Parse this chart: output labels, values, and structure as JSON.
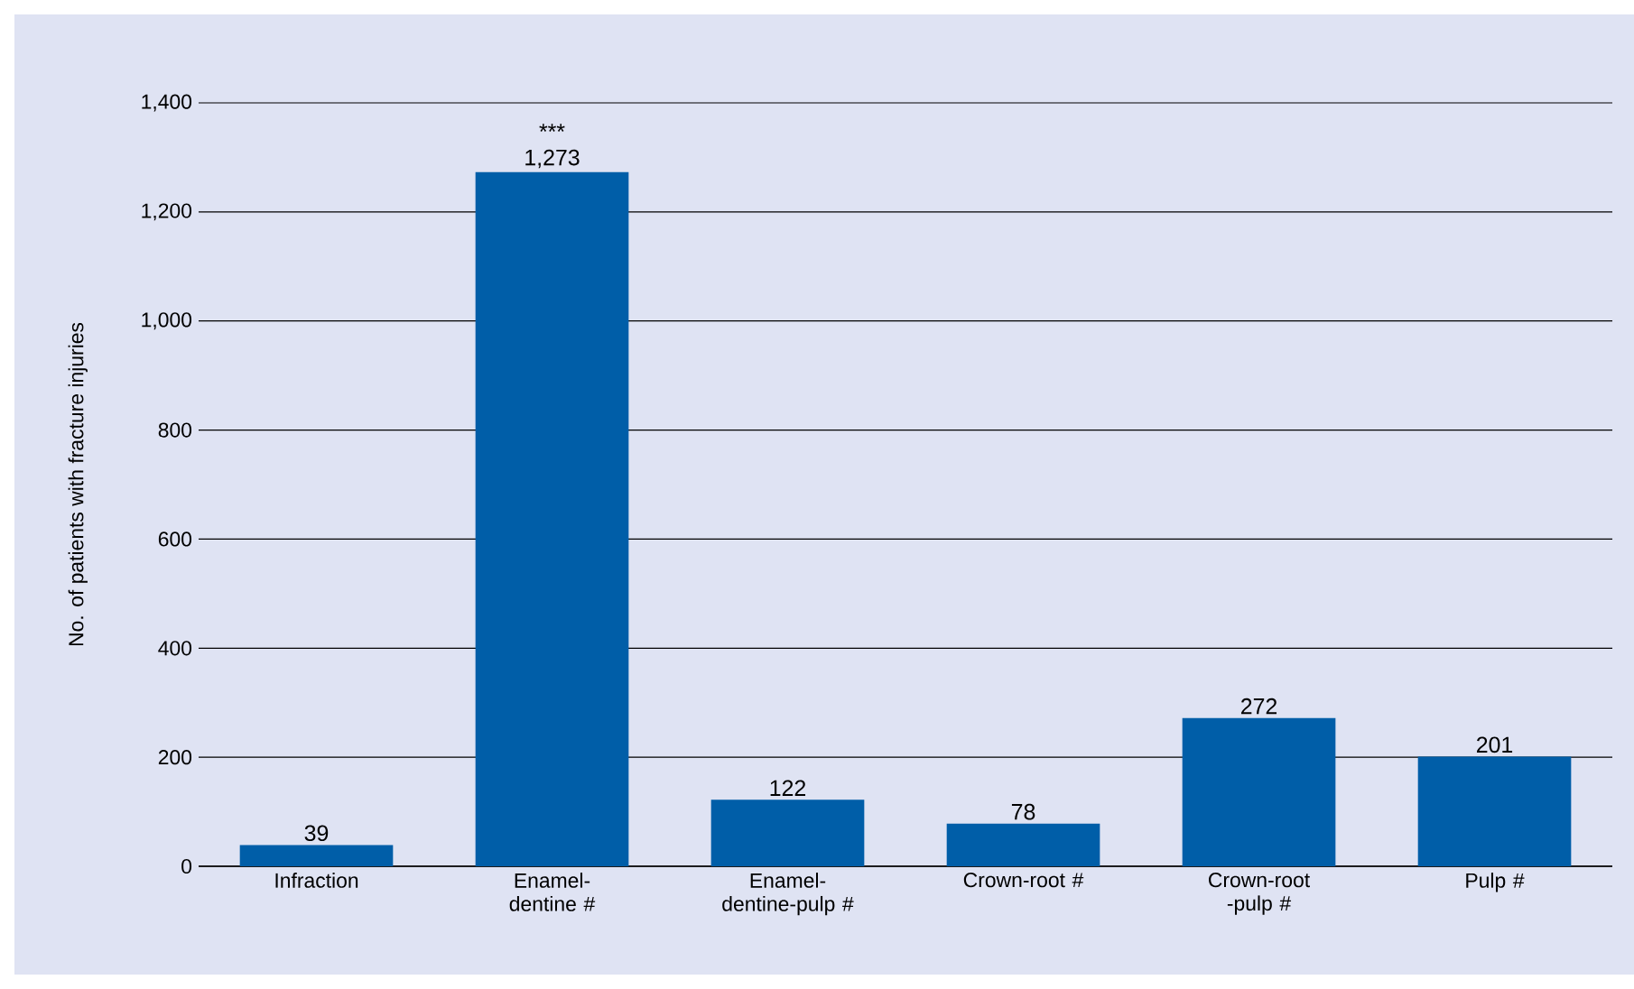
{
  "chart_data": {
    "type": "bar",
    "ylabel": "No. of patients with fracture injuries",
    "categories": [
      "Infraction",
      "Enamel-dentine #",
      "Enamel-dentine-pulp #",
      "Crown-root #",
      "Crown-root -pulp #",
      "Pulp #"
    ],
    "values": [
      39,
      1273,
      122,
      78,
      272,
      201
    ],
    "value_labels": [
      "39",
      "1,273",
      "122",
      "78",
      "272",
      "201"
    ],
    "color": "#005ea8",
    "ylim": [
      0,
      1400
    ],
    "yticks": [
      0,
      200,
      400,
      600,
      800,
      {
        "value": 1000,
        "label": "1,000"
      },
      {
        "value": 1200,
        "label": "1,200"
      },
      {
        "value": 1400,
        "label": "1,400"
      }
    ],
    "grid": "y",
    "annotations": [
      {
        "text": "***",
        "x": "Enamel-dentine #",
        "y": 1273
      }
    ]
  }
}
